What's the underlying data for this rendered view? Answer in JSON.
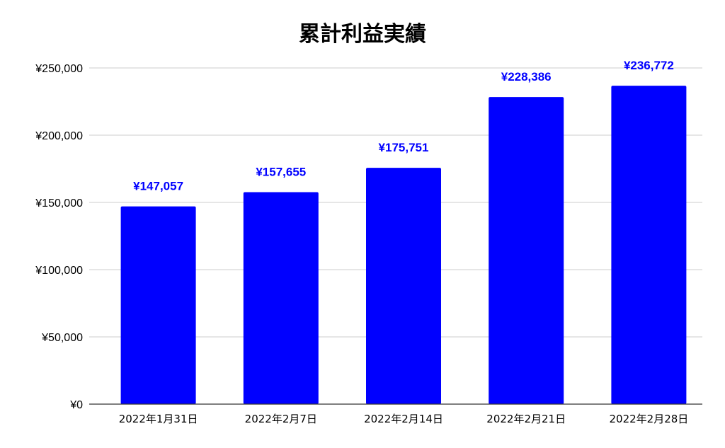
{
  "chart_data": {
    "type": "bar",
    "title": "累計利益実績",
    "xlabel": "",
    "ylabel": "",
    "categories": [
      "2022年1月31日",
      "2022年2月7日",
      "2022年2月14日",
      "2022年2月21日",
      "2022年2月28日"
    ],
    "values": [
      147057,
      157655,
      175751,
      228386,
      236772
    ],
    "value_labels": [
      "¥147,057",
      "¥157,655",
      "¥175,751",
      "¥228,386",
      "¥236,772"
    ],
    "ylim": [
      0,
      250000
    ],
    "yticks": [
      0,
      50000,
      100000,
      150000,
      200000,
      250000
    ],
    "ytick_labels": [
      "¥0",
      "¥50,000",
      "¥100,000",
      "¥150,000",
      "¥200,000",
      "¥250,000"
    ],
    "grid": true,
    "legend": "none",
    "bar_color": "#0000ff",
    "label_color": "#0000ff"
  }
}
